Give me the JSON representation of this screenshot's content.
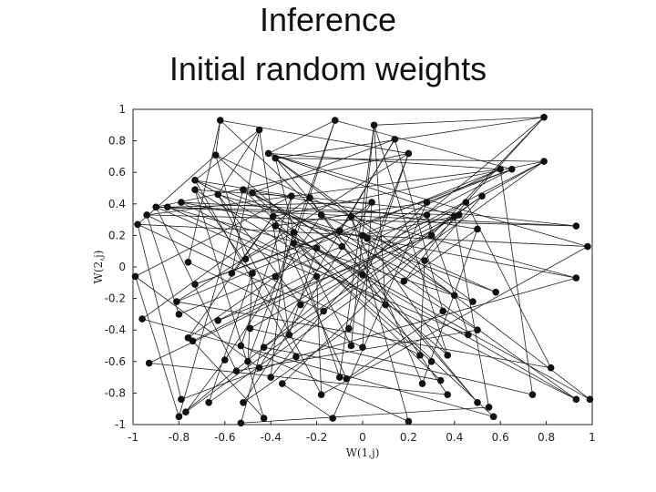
{
  "slide": {
    "title_line_1": "Inference",
    "title_line_2": "Initial random weights"
  },
  "chart_data": {
    "type": "scatter",
    "title": "",
    "xlabel": "W(1,j)",
    "ylabel": "W(2,j)",
    "xlim": [
      -1,
      1
    ],
    "ylim": [
      -1,
      1
    ],
    "xticks": [
      -1,
      -0.8,
      -0.6,
      -0.4,
      -0.2,
      0,
      0.2,
      0.4,
      0.6,
      0.8,
      1
    ],
    "yticks": [
      1,
      0.8,
      0.6,
      0.4,
      0.2,
      0,
      -0.2,
      -0.4,
      -0.6,
      -0.8,
      -1
    ],
    "xtick_labels": [
      "-1",
      "-0.8",
      "-0.6",
      "-0.4",
      "-0.2",
      "0",
      "0.2",
      "0.4",
      "0.6",
      "0.8",
      "1"
    ],
    "ytick_labels": [
      "1",
      "0.8",
      "0.6",
      "0.4",
      "0.2",
      "0",
      "-0.2",
      "-0.4",
      "-0.6",
      "-0.8",
      "-1"
    ],
    "grid": false,
    "marker_color": "#111111",
    "line_color": "#222222",
    "points": [
      [
        -0.62,
        0.93
      ],
      [
        -0.45,
        0.87
      ],
      [
        -0.12,
        0.93
      ],
      [
        0.05,
        0.9
      ],
      [
        0.79,
        0.95
      ],
      [
        -0.64,
        0.71
      ],
      [
        -0.41,
        0.72
      ],
      [
        -0.38,
        0.69
      ],
      [
        0.14,
        0.81
      ],
      [
        0.2,
        0.72
      ],
      [
        0.6,
        0.62
      ],
      [
        0.65,
        0.62
      ],
      [
        0.79,
        0.67
      ],
      [
        -0.73,
        0.55
      ],
      [
        -0.73,
        0.49
      ],
      [
        -0.79,
        0.41
      ],
      [
        -0.85,
        0.38
      ],
      [
        -0.9,
        0.38
      ],
      [
        -0.63,
        0.46
      ],
      [
        -0.52,
        0.49
      ],
      [
        -0.48,
        0.47
      ],
      [
        -0.31,
        0.45
      ],
      [
        -0.23,
        0.44
      ],
      [
        0.04,
        0.41
      ],
      [
        0.28,
        0.41
      ],
      [
        0.45,
        0.41
      ],
      [
        0.52,
        0.45
      ],
      [
        -0.94,
        0.33
      ],
      [
        -0.98,
        0.27
      ],
      [
        -0.39,
        0.32
      ],
      [
        -0.18,
        0.33
      ],
      [
        -0.05,
        0.32
      ],
      [
        0.28,
        0.33
      ],
      [
        0.4,
        0.32
      ],
      [
        0.42,
        0.33
      ],
      [
        -0.38,
        0.26
      ],
      [
        -0.3,
        0.22
      ],
      [
        -0.1,
        0.23
      ],
      [
        0.02,
        0.18
      ],
      [
        0.3,
        0.2
      ],
      [
        0.5,
        0.24
      ],
      [
        0.93,
        0.26
      ],
      [
        -0.3,
        0.15
      ],
      [
        -0.2,
        0.12
      ],
      [
        0.0,
        0.2
      ],
      [
        -0.09,
        0.13
      ],
      [
        -0.51,
        0.05
      ],
      [
        -0.57,
        -0.04
      ],
      [
        -0.48,
        -0.04
      ],
      [
        -0.76,
        0.03
      ],
      [
        -0.99,
        -0.06
      ],
      [
        -0.73,
        -0.11
      ],
      [
        -0.38,
        -0.06
      ],
      [
        -0.2,
        -0.06
      ],
      [
        0.0,
        -0.05
      ],
      [
        0.18,
        -0.09
      ],
      [
        0.58,
        -0.16
      ],
      [
        0.93,
        -0.07
      ],
      [
        0.98,
        0.13
      ],
      [
        0.27,
        0.04
      ],
      [
        -0.81,
        -0.22
      ],
      [
        -0.27,
        -0.24
      ],
      [
        -0.17,
        -0.28
      ],
      [
        0.1,
        -0.24
      ],
      [
        0.4,
        -0.18
      ],
      [
        0.48,
        -0.22
      ],
      [
        -0.96,
        -0.33
      ],
      [
        -0.8,
        -0.3
      ],
      [
        -0.63,
        -0.34
      ],
      [
        0.35,
        -0.28
      ],
      [
        0.5,
        -0.4
      ],
      [
        -0.76,
        -0.45
      ],
      [
        -0.74,
        -0.47
      ],
      [
        -0.49,
        -0.39
      ],
      [
        -0.32,
        -0.43
      ],
      [
        -0.06,
        -0.39
      ],
      [
        0.46,
        -0.43
      ],
      [
        -0.53,
        -0.5
      ],
      [
        -0.43,
        -0.51
      ],
      [
        -0.05,
        -0.5
      ],
      [
        0.0,
        -0.51
      ],
      [
        -0.93,
        -0.61
      ],
      [
        -0.6,
        -0.59
      ],
      [
        -0.5,
        -0.6
      ],
      [
        -0.29,
        -0.57
      ],
      [
        0.25,
        -0.56
      ],
      [
        0.37,
        -0.56
      ],
      [
        0.3,
        -0.6
      ],
      [
        -0.55,
        -0.66
      ],
      [
        -0.45,
        -0.64
      ],
      [
        0.26,
        -0.74
      ],
      [
        0.34,
        -0.72
      ],
      [
        -0.4,
        -0.7
      ],
      [
        -0.35,
        -0.74
      ],
      [
        0.82,
        -0.64
      ],
      [
        0.93,
        -0.84
      ],
      [
        0.99,
        -0.84
      ],
      [
        -0.79,
        -0.84
      ],
      [
        -0.67,
        -0.86
      ],
      [
        -0.52,
        -0.86
      ],
      [
        -0.18,
        -0.81
      ],
      [
        -0.1,
        -0.7
      ],
      [
        -0.07,
        -0.71
      ],
      [
        0.37,
        -0.81
      ],
      [
        0.5,
        -0.86
      ],
      [
        0.55,
        -0.89
      ],
      [
        0.74,
        -0.81
      ],
      [
        -0.8,
        -0.95
      ],
      [
        -0.77,
        -0.92
      ],
      [
        -0.53,
        -0.99
      ],
      [
        -0.43,
        -0.96
      ],
      [
        -0.13,
        -0.96
      ],
      [
        0.2,
        -0.98
      ],
      [
        0.57,
        -0.95
      ]
    ],
    "edges": [
      [
        0,
        5
      ],
      [
        0,
        9
      ],
      [
        0,
        30
      ],
      [
        0,
        49
      ],
      [
        1,
        13
      ],
      [
        1,
        18
      ],
      [
        1,
        47
      ],
      [
        1,
        74
      ],
      [
        2,
        6
      ],
      [
        2,
        11
      ],
      [
        2,
        42
      ],
      [
        2,
        83
      ],
      [
        3,
        4
      ],
      [
        3,
        63
      ],
      [
        3,
        79
      ],
      [
        3,
        101
      ],
      [
        4,
        7
      ],
      [
        4,
        25
      ],
      [
        4,
        39
      ],
      [
        4,
        107
      ],
      [
        5,
        28
      ],
      [
        5,
        31
      ],
      [
        5,
        46
      ],
      [
        5,
        86
      ],
      [
        6,
        10
      ],
      [
        6,
        33
      ],
      [
        6,
        58
      ],
      [
        6,
        96
      ],
      [
        7,
        12
      ],
      [
        7,
        36
      ],
      [
        7,
        65
      ],
      [
        7,
        104
      ],
      [
        8,
        20
      ],
      [
        8,
        37
      ],
      [
        8,
        69
      ],
      [
        8,
        89
      ],
      [
        9,
        17
      ],
      [
        9,
        54
      ],
      [
        9,
        75
      ],
      [
        10,
        27
      ],
      [
        10,
        44
      ],
      [
        10,
        60
      ],
      [
        10,
        106
      ],
      [
        11,
        24
      ],
      [
        11,
        51
      ],
      [
        11,
        68
      ],
      [
        12,
        26
      ],
      [
        12,
        29
      ],
      [
        12,
        72
      ],
      [
        12,
        98
      ],
      [
        13,
        21
      ],
      [
        13,
        56
      ],
      [
        13,
        84
      ],
      [
        14,
        22
      ],
      [
        14,
        48
      ],
      [
        14,
        63
      ],
      [
        14,
        110
      ],
      [
        15,
        32
      ],
      [
        15,
        57
      ],
      [
        15,
        95
      ],
      [
        16,
        23
      ],
      [
        16,
        43
      ],
      [
        16,
        76
      ],
      [
        17,
        34
      ],
      [
        17,
        53
      ],
      [
        17,
        88
      ],
      [
        18,
        38
      ],
      [
        18,
        61
      ],
      [
        18,
        100
      ],
      [
        19,
        40
      ],
      [
        19,
        64
      ],
      [
        19,
        91
      ],
      [
        20,
        45
      ],
      [
        20,
        70
      ],
      [
        20,
        113
      ],
      [
        21,
        50
      ],
      [
        21,
        77
      ],
      [
        21,
        92
      ],
      [
        22,
        41
      ],
      [
        22,
        66
      ],
      [
        22,
        103
      ],
      [
        23,
        52
      ],
      [
        23,
        80
      ],
      [
        23,
        99
      ],
      [
        24,
        35
      ],
      [
        24,
        62
      ],
      [
        24,
        111
      ],
      [
        25,
        55
      ],
      [
        25,
        73
      ],
      [
        25,
        94
      ],
      [
        26,
        59
      ],
      [
        26,
        78
      ],
      [
        26,
        108
      ],
      [
        27,
        41
      ],
      [
        27,
        67
      ],
      [
        27,
        85
      ],
      [
        28,
        58
      ],
      [
        28,
        97
      ],
      [
        29,
        47
      ],
      [
        29,
        71
      ],
      [
        29,
        102
      ],
      [
        30,
        56
      ],
      [
        30,
        82
      ],
      [
        31,
        57
      ],
      [
        31,
        90
      ],
      [
        31,
        112
      ],
      [
        32,
        39
      ],
      [
        32,
        76
      ],
      [
        33,
        44
      ],
      [
        33,
        81
      ],
      [
        33,
        105
      ],
      [
        34,
        61
      ],
      [
        34,
        93
      ],
      [
        35,
        54
      ],
      [
        35,
        87
      ],
      [
        36,
        46
      ],
      [
        36,
        79
      ],
      [
        36,
        109
      ],
      [
        37,
        51
      ],
      [
        37,
        95
      ],
      [
        38,
        64
      ],
      [
        38,
        86
      ],
      [
        39,
        68
      ],
      [
        39,
        114
      ],
      [
        40,
        55
      ],
      [
        40,
        90
      ],
      [
        42,
        65
      ],
      [
        42,
        101
      ],
      [
        43,
        74
      ],
      [
        43,
        96
      ],
      [
        45,
        67
      ],
      [
        45,
        104
      ],
      [
        48,
        83
      ],
      [
        48,
        98
      ],
      [
        49,
        80
      ],
      [
        50,
        89
      ],
      [
        50,
        107
      ],
      [
        52,
        71
      ],
      [
        53,
        100
      ],
      [
        59,
        85
      ],
      [
        60,
        94
      ],
      [
        62,
        92
      ],
      [
        66,
        113
      ],
      [
        69,
        102
      ],
      [
        70,
        88
      ],
      [
        72,
        110
      ],
      [
        73,
        106
      ],
      [
        75,
        99
      ],
      [
        77,
        112
      ],
      [
        78,
        91
      ],
      [
        81,
        103
      ],
      [
        82,
        108
      ],
      [
        84,
        97
      ],
      [
        87,
        114
      ],
      [
        93,
        111
      ],
      [
        105,
        109
      ],
      [
        9,
        60
      ],
      [
        13,
        95
      ],
      [
        17,
        41
      ],
      [
        28,
        62
      ],
      [
        57,
        84
      ],
      [
        100,
        58
      ],
      [
        19,
        107
      ],
      [
        3,
        86
      ]
    ]
  }
}
